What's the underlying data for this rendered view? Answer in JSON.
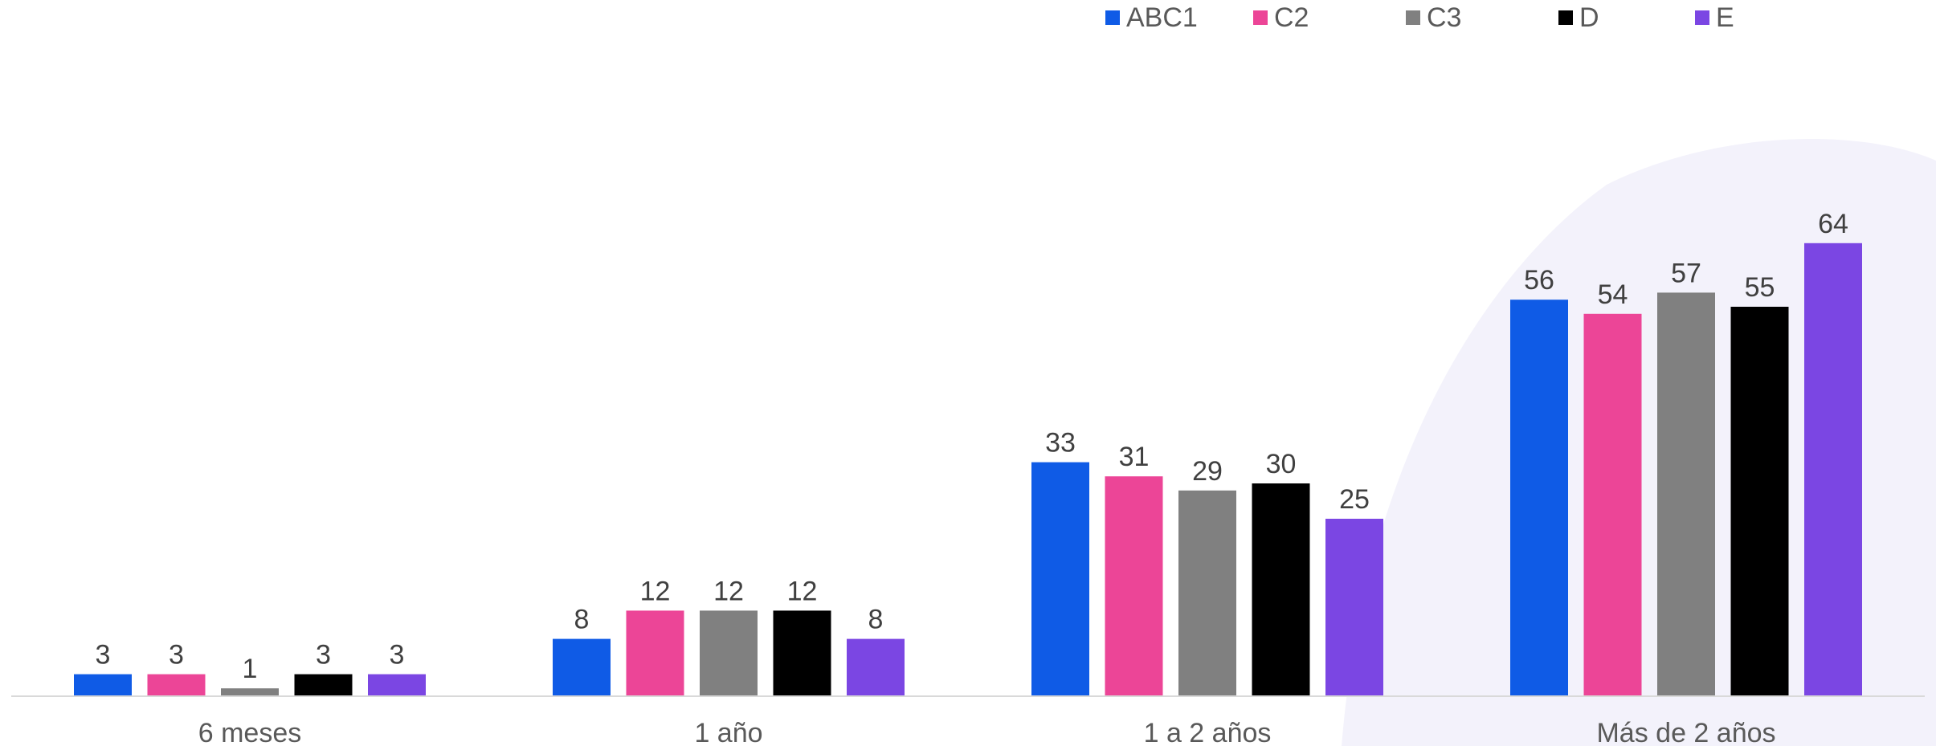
{
  "chart_data": {
    "type": "bar",
    "title": "",
    "xlabel": "",
    "ylabel": "",
    "categories": [
      "6 meses",
      "1 año",
      "1 a 2 años",
      "Más de 2 años"
    ],
    "ylim": [
      0,
      70
    ],
    "grid": false,
    "legend_position": "top-right",
    "series": [
      {
        "name": "ABC1",
        "color": "#0f5be6",
        "values": [
          3,
          8,
          33,
          56
        ]
      },
      {
        "name": "C2",
        "color": "#ec4597",
        "values": [
          3,
          12,
          31,
          54
        ]
      },
      {
        "name": "C3",
        "color": "#808080",
        "values": [
          1,
          12,
          29,
          57
        ]
      },
      {
        "name": "D",
        "color": "#000000",
        "values": [
          3,
          12,
          30,
          55
        ]
      },
      {
        "name": "E",
        "color": "#7b46e3",
        "values": [
          3,
          8,
          25,
          64
        ]
      }
    ]
  }
}
